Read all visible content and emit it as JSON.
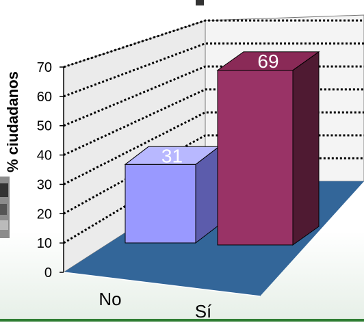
{
  "chart_data": {
    "type": "bar",
    "categories": [
      "No",
      "Sí"
    ],
    "values": [
      31,
      69
    ],
    "data_labels": [
      "31",
      "69"
    ],
    "ylabel": "% ciudadanos",
    "ylim": [
      0,
      70
    ],
    "yticks": [
      "0",
      "10",
      "20",
      "30",
      "40",
      "50",
      "60",
      "70"
    ],
    "grid": true,
    "three_d": true,
    "colors": {
      "no": "#9999ff",
      "si": "#993366",
      "floor": "#336699",
      "walls": "#ebebeb",
      "footer": "#2e7d32"
    }
  }
}
